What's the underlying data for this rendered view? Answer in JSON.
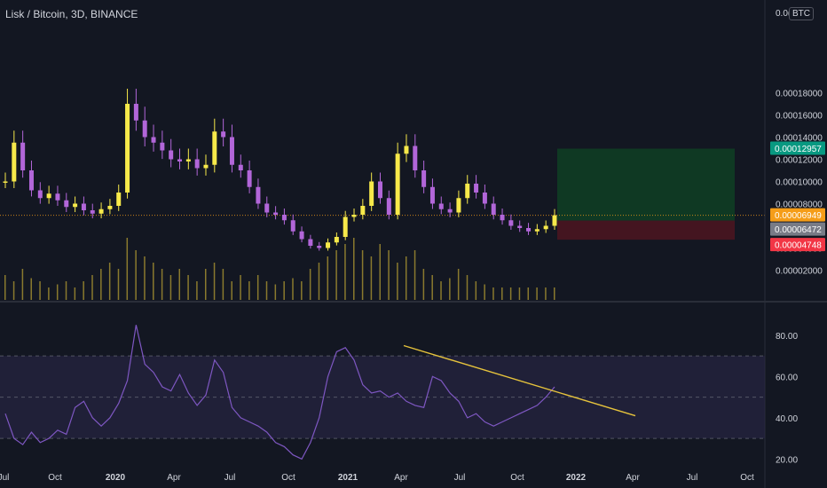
{
  "header": {
    "title": "Lisk / Bitcoin, 3D, BINANCE",
    "currency": "BTC"
  },
  "colors": {
    "background": "#131722",
    "candle": "#f7e94a",
    "wick_alt": "#b266d9",
    "volume": "#8a7a2e",
    "rsi_line": "#7e57c2",
    "rsi_band": "#2a2647",
    "trendline": "#e6c33c",
    "target_zone": "#0f3d24",
    "stop_zone": "#4a1520",
    "label_target": "#089981",
    "label_entry": "#f59d18",
    "label_mid": "#787b86",
    "label_stop": "#f23645",
    "grid": "#2a2e39",
    "text": "#d1d4dc"
  },
  "chart_data": [
    {
      "type": "candlestick",
      "title": "Lisk / Bitcoin, 3D, BINANCE",
      "ylabel": "BTC",
      "y_axis_ticks": [
        "0.00018000",
        "0.00016000",
        "0.00014000",
        "0.00012000",
        "0.00010000",
        "0.00008000",
        "0.00004000",
        "0.00002000"
      ],
      "y_axis_partial_top": "0.0(",
      "ylim": [
        0.0,
        0.000196
      ],
      "x_axis_ticks": [
        "Jul",
        "Oct",
        "2020",
        "Apr",
        "Jul",
        "Oct",
        "2021",
        "Apr",
        "Jul",
        "Oct",
        "2022",
        "Apr",
        "Jul",
        "Oct"
      ],
      "series": [
        {
          "name": "close",
          "values": [
            0.0001,
            0.000135,
            0.00011,
            9.2e-05,
            8.5e-05,
            8.9e-05,
            8.3e-05,
            7.7e-05,
            8e-05,
            7.4e-05,
            7.1e-05,
            7.5e-05,
            7.8e-05,
            9e-05,
            0.00017,
            0.000155,
            0.00014,
            0.000135,
            0.000128,
            0.00012,
            0.000118,
            0.00012,
            0.000112,
            0.000115,
            0.000145,
            0.00014,
            0.000115,
            0.00011,
            9.5e-05,
            8e-05,
            7.2e-05,
            7e-05,
            6.5e-05,
            5.5e-05,
            4.8e-05,
            4.2e-05,
            4e-05,
            4.5e-05,
            5e-05,
            6.8e-05,
            7e-05,
            7.8e-05,
            0.0001,
            8.5e-05,
            7e-05,
            0.000125,
            0.000132,
            0.00011,
            9.5e-05,
            8e-05,
            7.5e-05,
            7.2e-05,
            8.5e-05,
            9.8e-05,
            9e-05,
            8e-05,
            7e-05,
            6.5e-05,
            6e-05,
            5.8e-05,
            5.5e-05,
            5.7e-05,
            6e-05,
            6.95e-05
          ]
        }
      ],
      "last_price": "0.00006949",
      "levels": [
        {
          "label": "0.00012957",
          "value": 0.00012957,
          "role": "target"
        },
        {
          "label": "0.00006949",
          "value": 6.949e-05,
          "role": "entry"
        },
        {
          "label": "0.00006472",
          "value": 6.472e-05,
          "role": "position"
        },
        {
          "label": "0.00004748",
          "value": 4.748e-05,
          "role": "stop"
        }
      ],
      "volume": [
        0.4,
        0.3,
        0.5,
        0.35,
        0.3,
        0.2,
        0.25,
        0.3,
        0.2,
        0.3,
        0.4,
        0.5,
        0.6,
        0.5,
        1,
        0.8,
        0.7,
        0.6,
        0.5,
        0.4,
        0.5,
        0.4,
        0.3,
        0.5,
        0.6,
        0.5,
        0.3,
        0.4,
        0.3,
        0.4,
        0.3,
        0.25,
        0.3,
        0.35,
        0.3,
        0.5,
        0.6,
        0.7,
        0.8,
        0.9,
        1,
        0.8,
        0.7,
        0.9,
        0.8,
        0.6,
        0.7,
        0.8,
        0.5,
        0.4,
        0.3,
        0.35,
        0.5,
        0.4,
        0.3,
        0.25,
        0.2,
        0.2,
        0.2,
        0.2,
        0.2,
        0.2,
        0.2,
        0.2
      ]
    },
    {
      "type": "line",
      "title": "RSI",
      "y_axis_ticks": [
        "80.00",
        "60.00",
        "40.00",
        "20.00"
      ],
      "ylim": [
        18,
        95
      ],
      "bands": [
        30,
        50,
        70
      ],
      "series": [
        {
          "name": "RSI",
          "values": [
            42,
            30,
            27,
            33,
            28,
            30,
            34,
            32,
            45,
            48,
            40,
            36,
            40,
            47,
            58,
            85,
            66,
            62,
            55,
            53,
            61,
            52,
            46,
            51,
            68,
            62,
            45,
            40,
            38,
            36,
            33,
            28,
            26,
            22,
            20,
            28,
            40,
            60,
            72,
            74,
            68,
            56,
            52,
            53,
            50,
            52,
            48,
            46,
            45,
            60,
            58,
            52,
            48,
            40,
            42,
            38,
            36,
            38,
            40,
            42,
            44,
            46,
            50,
            55
          ]
        }
      ],
      "trendline": {
        "from": [
          0.4,
          75
        ],
        "to": [
          1.0,
          41
        ]
      }
    }
  ]
}
